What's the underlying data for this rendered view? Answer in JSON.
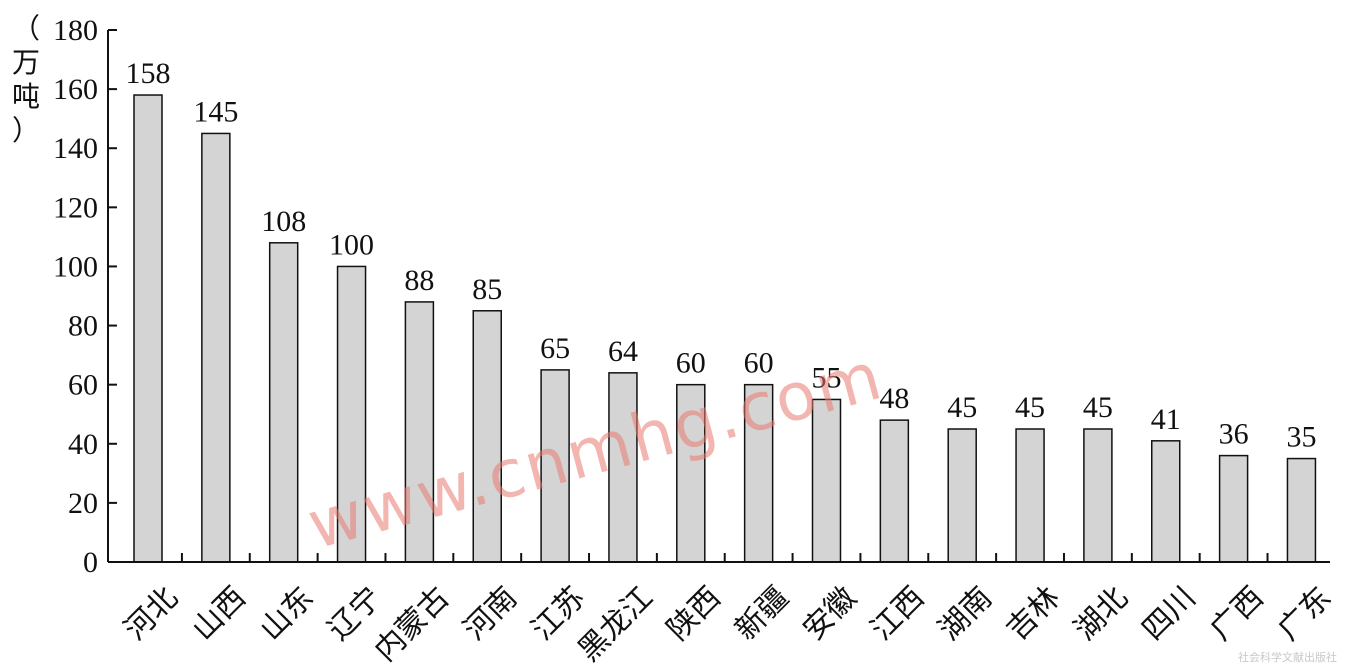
{
  "chart_data": {
    "type": "bar",
    "categories": [
      "河北",
      "山西",
      "山东",
      "辽宁",
      "内蒙古",
      "河南",
      "江苏",
      "黑龙江",
      "陕西",
      "新疆",
      "安徽",
      "江西",
      "湖南",
      "吉林",
      "湖北",
      "四川",
      "广西",
      "广东"
    ],
    "values": [
      158,
      145,
      108,
      100,
      88,
      85,
      65,
      64,
      60,
      60,
      55,
      48,
      45,
      45,
      45,
      41,
      36,
      35
    ],
    "ylabel": "（万吨）",
    "ylim": [
      0,
      180
    ],
    "yticks": [
      0,
      20,
      40,
      60,
      80,
      100,
      120,
      140,
      160,
      180
    ],
    "grid": false,
    "bar_color": "#d4d4d4",
    "bar_edge_color": "#111111"
  },
  "watermark": "www.cnmhg.com",
  "publisher": "社会科学文献出版社"
}
